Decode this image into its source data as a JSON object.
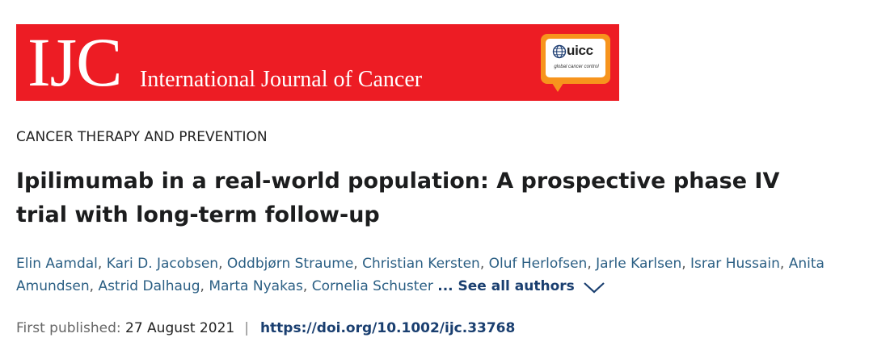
{
  "journal": {
    "logo_text": "IJC",
    "name": "International Journal of Cancer",
    "partner_logo_text": "uicc",
    "partner_tagline": "global cancer control",
    "brand_color": "#ed1c24",
    "partner_color": "#f7941d"
  },
  "article": {
    "category": "CANCER THERAPY AND PREVENTION",
    "title": "Ipilimumab in a real-world population: A prospective phase IV trial with long-term follow-up",
    "authors": [
      "Elin Aamdal",
      "Kari D. Jacobsen",
      "Oddbjørn Straume",
      "Christian Kersten",
      "Oluf Herlofsen",
      "Jarle Karlsen",
      "Israr Hussain",
      "Anita Amundsen",
      "Astrid Dalhaug",
      "Marta Nyakas",
      "Cornelia Schuster"
    ],
    "ellipsis": "...",
    "see_all_label": "See all authors",
    "first_published_label": "First published:",
    "first_published_date": "27 August 2021",
    "separator": "|",
    "doi": "https://doi.org/10.1002/ijc.33768",
    "link_color": "#1a3f70"
  }
}
